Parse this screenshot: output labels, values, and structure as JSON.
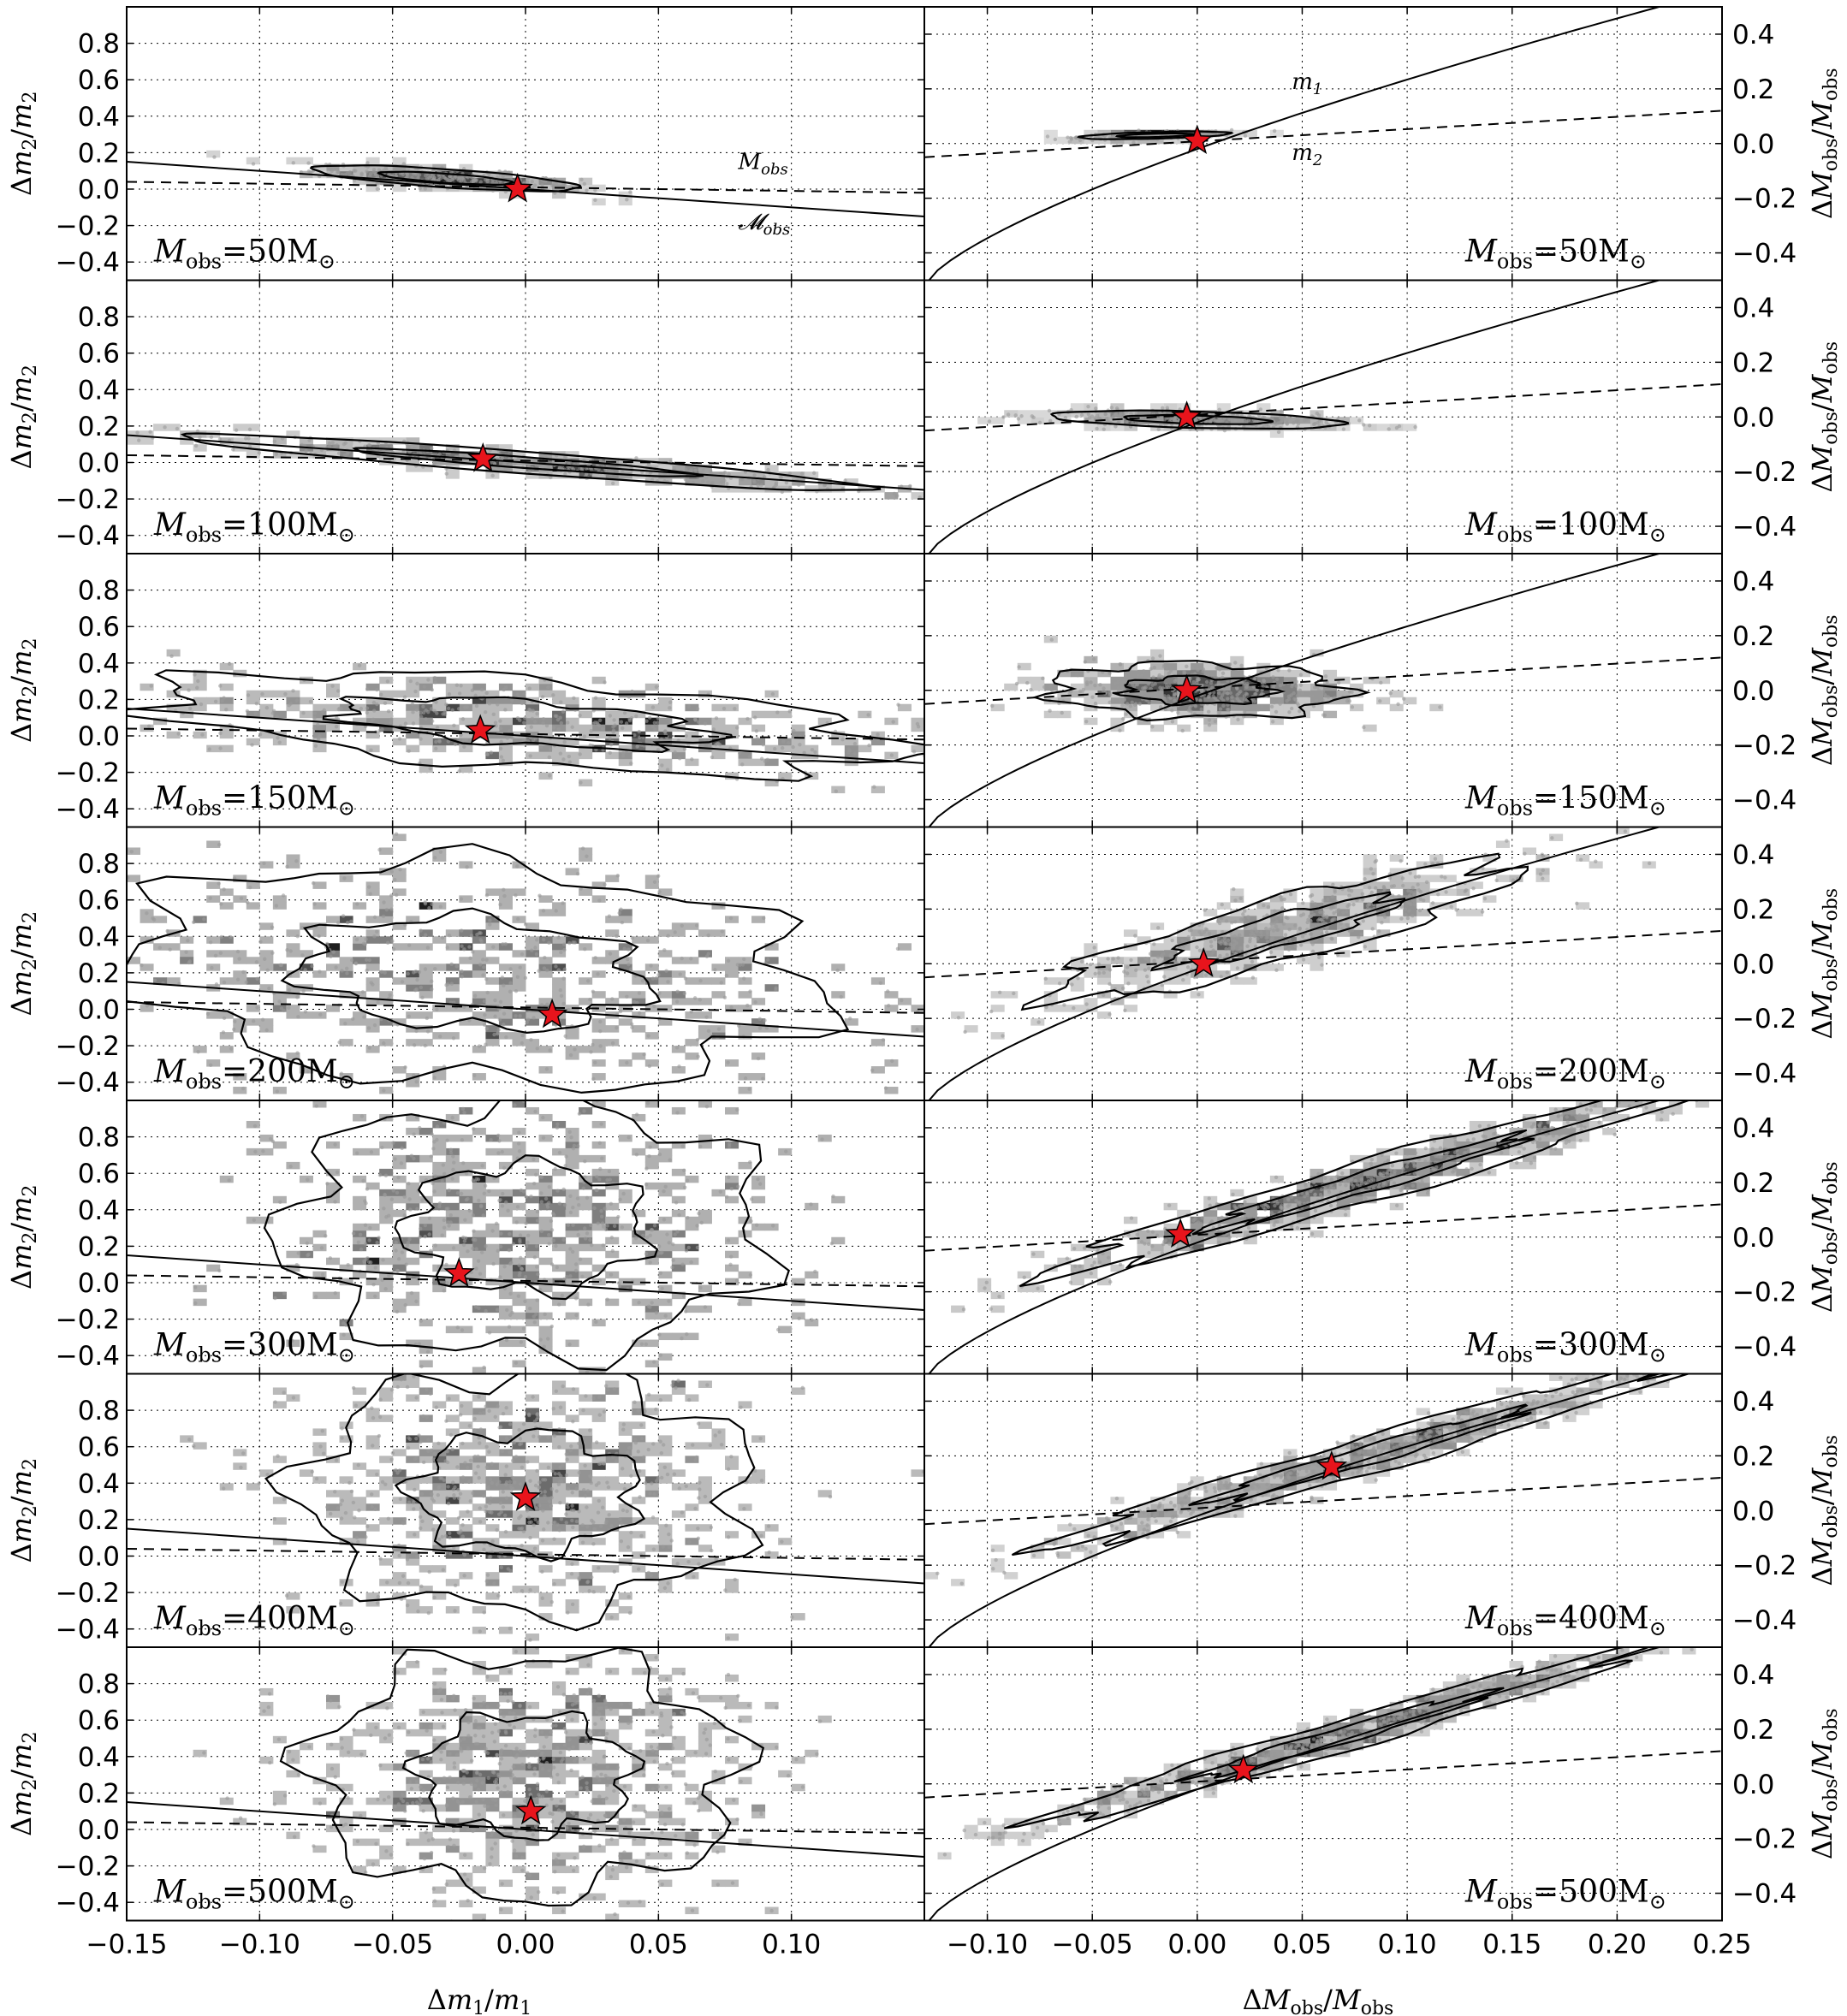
{
  "chart_data": {
    "type": "scatter",
    "layout": "7 rows x 2 columns of panels sharing axes",
    "grid": true,
    "left_column": {
      "xlabel": "Δm₁/m₁",
      "ylabel": "Δm₂/m₂",
      "xlim": [
        -0.15,
        0.15
      ],
      "ylim": [
        -0.5,
        1.0
      ],
      "xticks": [
        "−0.15",
        "−0.10",
        "−0.05",
        "0.00",
        "0.05",
        "0.10"
      ],
      "yticks": [
        "−0.4",
        "−0.2",
        "0.0",
        "0.2",
        "0.4",
        "0.6",
        "0.8"
      ],
      "curves": [
        {
          "style": "solid",
          "label": "𝓜obs",
          "line": [
            [
              -0.15,
              0.15
            ],
            [
              0.15,
              -0.15
            ]
          ]
        },
        {
          "style": "dashed",
          "label": "Mobs",
          "line": [
            [
              -0.15,
              0.04
            ],
            [
              0.15,
              -0.02
            ]
          ]
        }
      ]
    },
    "right_column": {
      "xlabel": "ΔMobs/Mobs",
      "ylabel": "Δ𝓜obs/𝓜obs",
      "xlim": [
        -0.13,
        0.25
      ],
      "ylim": [
        -0.5,
        0.5
      ],
      "xticks": [
        "−0.10",
        "−0.05",
        "0.00",
        "0.05",
        "0.10",
        "0.15",
        "0.20",
        "0.25"
      ],
      "yticks": [
        "−0.4",
        "−0.2",
        "0.0",
        "0.2",
        "0.4"
      ],
      "curves": [
        {
          "style": "solid",
          "label": "m₁"
        },
        {
          "style": "dashed",
          "label": "m₂"
        }
      ]
    },
    "panels": [
      {
        "label": "Mobs=50M⊙",
        "mass": "50",
        "left": {
          "star": [
            -0.003,
            0.0
          ],
          "cloud": {
            "cx": -0.03,
            "cy": 0.06,
            "sx": 0.025,
            "sy": 0.025,
            "slope": -1.0
          },
          "spread": 1
        },
        "right": {
          "star": [
            0.0,
            0.01
          ],
          "cloud": {
            "cx": -0.02,
            "cy": 0.03,
            "sx": 0.018,
            "sy": 0.006,
            "slope": 0.2
          },
          "spread": 1
        }
      },
      {
        "label": "Mobs=100M⊙",
        "mass": "100",
        "left": {
          "star": [
            -0.016,
            0.02
          ],
          "cloud": {
            "cx": 0.0,
            "cy": 0.0,
            "sx": 0.065,
            "sy": 0.03,
            "slope": -1.1
          },
          "spread": 2
        },
        "right": {
          "star": [
            -0.005,
            0.0
          ],
          "cloud": {
            "cx": 0.0,
            "cy": -0.01,
            "sx": 0.035,
            "sy": 0.015,
            "slope": -0.2
          },
          "spread": 2
        }
      },
      {
        "label": "Mobs=150M⊙",
        "mass": "150",
        "left": {
          "star": [
            -0.017,
            0.03
          ],
          "cloud": {
            "cx": 0.0,
            "cy": 0.07,
            "sx": 0.07,
            "sy": 0.12,
            "slope": -1.0
          },
          "spread": 3
        },
        "right": {
          "star": [
            -0.005,
            0.0
          ],
          "cloud": {
            "cx": 0.0,
            "cy": 0.0,
            "sx": 0.035,
            "sy": 0.05,
            "slope": -0.1
          },
          "spread": 3
        }
      },
      {
        "label": "Mobs=200M⊙",
        "mass": "200",
        "left": {
          "star": [
            0.01,
            -0.03
          ],
          "cloud": {
            "cx": -0.02,
            "cy": 0.2,
            "sx": 0.065,
            "sy": 0.3,
            "slope": -0.8
          },
          "spread": 4
        },
        "right": {
          "star": [
            0.003,
            0.0
          ],
          "cloud": {
            "cx": 0.04,
            "cy": 0.12,
            "sx": 0.055,
            "sy": 0.06,
            "slope": 2.0
          },
          "spread": 4
        }
      },
      {
        "label": "Mobs=300M⊙",
        "mass": "300",
        "left": {
          "star": [
            -0.025,
            0.05
          ],
          "cloud": {
            "cx": 0.0,
            "cy": 0.3,
            "sx": 0.045,
            "sy": 0.35,
            "slope": 0.0
          },
          "spread": 5
        },
        "right": {
          "star": [
            -0.008,
            0.01
          ],
          "cloud": {
            "cx": 0.08,
            "cy": 0.2,
            "sx": 0.075,
            "sy": 0.04,
            "slope": 2.2
          },
          "spread": 5
        }
      },
      {
        "label": "Mobs=400M⊙",
        "mass": "400",
        "left": {
          "star": [
            0.0,
            0.32
          ],
          "cloud": {
            "cx": 0.0,
            "cy": 0.35,
            "sx": 0.042,
            "sy": 0.33,
            "slope": 0.0
          },
          "spread": 6
        },
        "right": {
          "star": [
            0.064,
            0.16
          ],
          "cloud": {
            "cx": 0.08,
            "cy": 0.2,
            "sx": 0.075,
            "sy": 0.035,
            "slope": 2.2
          },
          "spread": 6
        }
      },
      {
        "label": "Mobs=500M⊙",
        "mass": "500",
        "left": {
          "star": [
            0.002,
            0.1
          ],
          "cloud": {
            "cx": 0.0,
            "cy": 0.3,
            "sx": 0.04,
            "sy": 0.33,
            "slope": 0.0
          },
          "spread": 6
        },
        "right": {
          "star": [
            0.022,
            0.05
          ],
          "cloud": {
            "cx": 0.07,
            "cy": 0.18,
            "sx": 0.07,
            "sy": 0.03,
            "slope": 2.2
          },
          "spread": 6
        }
      }
    ],
    "annotations": {
      "panel1_left": [
        "Mobs",
        "𝓜obs"
      ],
      "panel1_right": [
        "m₁",
        "m₂"
      ]
    },
    "star_color": "#e8141c",
    "scatter_color": "#9a9a9a"
  }
}
